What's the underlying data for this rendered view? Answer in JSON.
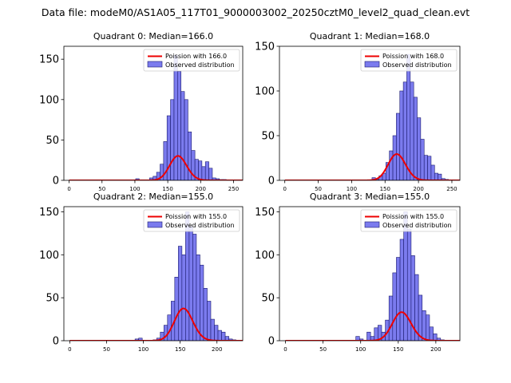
{
  "figure": {
    "suptitle": "Data file: modeM0/AS1A05_117T01_9000003002_20250cztM0_level2_quad_clean.evt",
    "colors": {
      "bar_fill": "#7b7bee",
      "bar_edge": "#1a1a6e",
      "poisson_line": "#ee0000"
    }
  },
  "chart_data": [
    {
      "type": "bar",
      "title": "Quadrant 0: Median=166.0",
      "median": 166.0,
      "xlim": [
        -8,
        264
      ],
      "ylim": [
        0,
        166
      ],
      "xticks": [
        0,
        50,
        100,
        150,
        200,
        250
      ],
      "yticks": [
        0,
        50,
        100,
        150
      ],
      "bin_width": 5.3,
      "bins_x": [
        0.5,
        5.8,
        11.1,
        16.4,
        21.7,
        27,
        32.3,
        37.6,
        42.9,
        48.2,
        53.5,
        58.8,
        64.1,
        69.4,
        74.7,
        80,
        85.3,
        90.6,
        95.9,
        101.2,
        106.5,
        111.8,
        117.1,
        122.4,
        127.7,
        133,
        138.3,
        143.6,
        148.9,
        154.2,
        159.5,
        164.8,
        170.1,
        175.4,
        180.7,
        186,
        191.3,
        196.6,
        201.9,
        207.2,
        212.5,
        217.8,
        223.1,
        228.4,
        233.7,
        239,
        244.3,
        249.6
      ],
      "counts": [
        0,
        0,
        0,
        0,
        0,
        0,
        0,
        0,
        0,
        0,
        0,
        0,
        0,
        0,
        0,
        0,
        0,
        0,
        0,
        2,
        0,
        0,
        0,
        3,
        5,
        10,
        20,
        48,
        80,
        100,
        155,
        135,
        110,
        100,
        60,
        37,
        26,
        24,
        17,
        23,
        15,
        3,
        2,
        1,
        1,
        0,
        0,
        0
      ],
      "legend": [
        "Poission with 166.0",
        "Observed distribution"
      ]
    },
    {
      "type": "bar",
      "title": "Quadrant 1: Median=168.0",
      "median": 168.0,
      "xlim": [
        -8,
        262
      ],
      "ylim": [
        0,
        150
      ],
      "xticks": [
        0,
        50,
        100,
        150,
        200,
        250
      ],
      "yticks": [
        0,
        50,
        100,
        150
      ],
      "bin_width": 5.2,
      "bins_x": [
        0.5,
        5.7,
        10.9,
        16.1,
        21.3,
        26.5,
        31.7,
        36.9,
        42.1,
        47.3,
        52.5,
        57.7,
        62.9,
        68.1,
        73.3,
        78.5,
        83.7,
        88.9,
        94.1,
        99.3,
        104.5,
        109.7,
        114.9,
        120.1,
        125.3,
        130.5,
        135.7,
        140.9,
        146.1,
        151.3,
        156.5,
        161.7,
        166.9,
        172.1,
        177.3,
        182.5,
        187.7,
        192.9,
        198.1,
        203.3,
        208.5,
        213.7,
        218.9,
        224.1,
        229.3,
        234.5,
        239.7,
        244.9
      ],
      "counts": [
        0,
        0,
        0,
        0,
        0,
        0,
        0,
        0,
        0,
        0,
        0,
        0,
        0,
        0,
        0,
        0,
        0,
        0,
        0,
        0,
        0,
        0,
        0,
        0,
        0,
        3,
        1,
        5,
        8,
        20,
        33,
        50,
        75,
        100,
        110,
        141,
        110,
        93,
        70,
        46,
        28,
        27,
        17,
        8,
        7,
        2,
        1,
        0
      ],
      "legend": [
        "Poission with 168.0",
        "Observed distribution"
      ]
    },
    {
      "type": "bar",
      "title": "Quadrant 2: Median=155.0",
      "median": 155.0,
      "xlim": [
        -8,
        235
      ],
      "ylim": [
        0,
        156
      ],
      "xticks": [
        0,
        50,
        100,
        150,
        200
      ],
      "yticks": [
        0,
        50,
        100,
        150
      ],
      "bin_width": 4.9,
      "bins_x": [
        0.5,
        5.4,
        10.3,
        15.2,
        20.1,
        25,
        29.9,
        34.8,
        39.7,
        44.6,
        49.5,
        54.4,
        59.3,
        64.2,
        69.1,
        74,
        78.9,
        83.8,
        88.7,
        93.6,
        98.5,
        103.4,
        108.3,
        113.2,
        118.1,
        123,
        127.9,
        132.8,
        137.7,
        142.6,
        147.5,
        152.4,
        157.3,
        162.2,
        167.1,
        172,
        176.9,
        181.8,
        186.7,
        191.6,
        196.5,
        201.4,
        206.3,
        211.3,
        216.1,
        221
      ],
      "counts": [
        0,
        0,
        0,
        0,
        0,
        0,
        0,
        0,
        0,
        0,
        0,
        0,
        0,
        0,
        0,
        0,
        0,
        0,
        2,
        3,
        0,
        0,
        0,
        1,
        3,
        10,
        18,
        30,
        46,
        74,
        110,
        100,
        150,
        133,
        124,
        100,
        88,
        61,
        46,
        25,
        18,
        12,
        10,
        5,
        2,
        1
      ],
      "legend": [
        "Poission with 155.0",
        "Observed distribution"
      ]
    },
    {
      "type": "bar",
      "title": "Quadrant 3: Median=155.0",
      "median": 155.0,
      "xlim": [
        -8,
        232
      ],
      "ylim": [
        0,
        156
      ],
      "xticks": [
        0,
        50,
        100,
        150,
        200
      ],
      "yticks": [
        0,
        50,
        100,
        150
      ],
      "bin_width": 4.9,
      "bins_x": [
        0.5,
        5.4,
        10.3,
        15.2,
        20.1,
        25,
        29.9,
        34.8,
        39.7,
        44.6,
        49.5,
        54.4,
        59.3,
        64.2,
        69.1,
        74,
        78.9,
        83.8,
        88.7,
        93.6,
        98.5,
        103.4,
        108.3,
        113.2,
        118.1,
        123,
        127.9,
        132.8,
        137.7,
        142.6,
        147.5,
        152.4,
        157.3,
        162.2,
        167.1,
        172,
        176.9,
        181.8,
        186.7,
        191.6,
        196.5,
        201.4,
        206.3,
        211.3,
        216.1
      ],
      "counts": [
        0,
        0,
        0,
        0,
        0,
        0,
        0,
        0,
        0,
        0,
        0,
        0,
        0,
        0,
        0,
        0,
        0,
        0,
        0,
        5,
        2,
        0,
        10,
        5,
        15,
        18,
        10,
        24,
        52,
        79,
        97,
        118,
        150,
        130,
        99,
        77,
        53,
        35,
        30,
        16,
        8,
        3,
        1,
        0,
        0
      ],
      "legend": [
        "Poission with 155.0",
        "Observed distribution"
      ]
    }
  ]
}
